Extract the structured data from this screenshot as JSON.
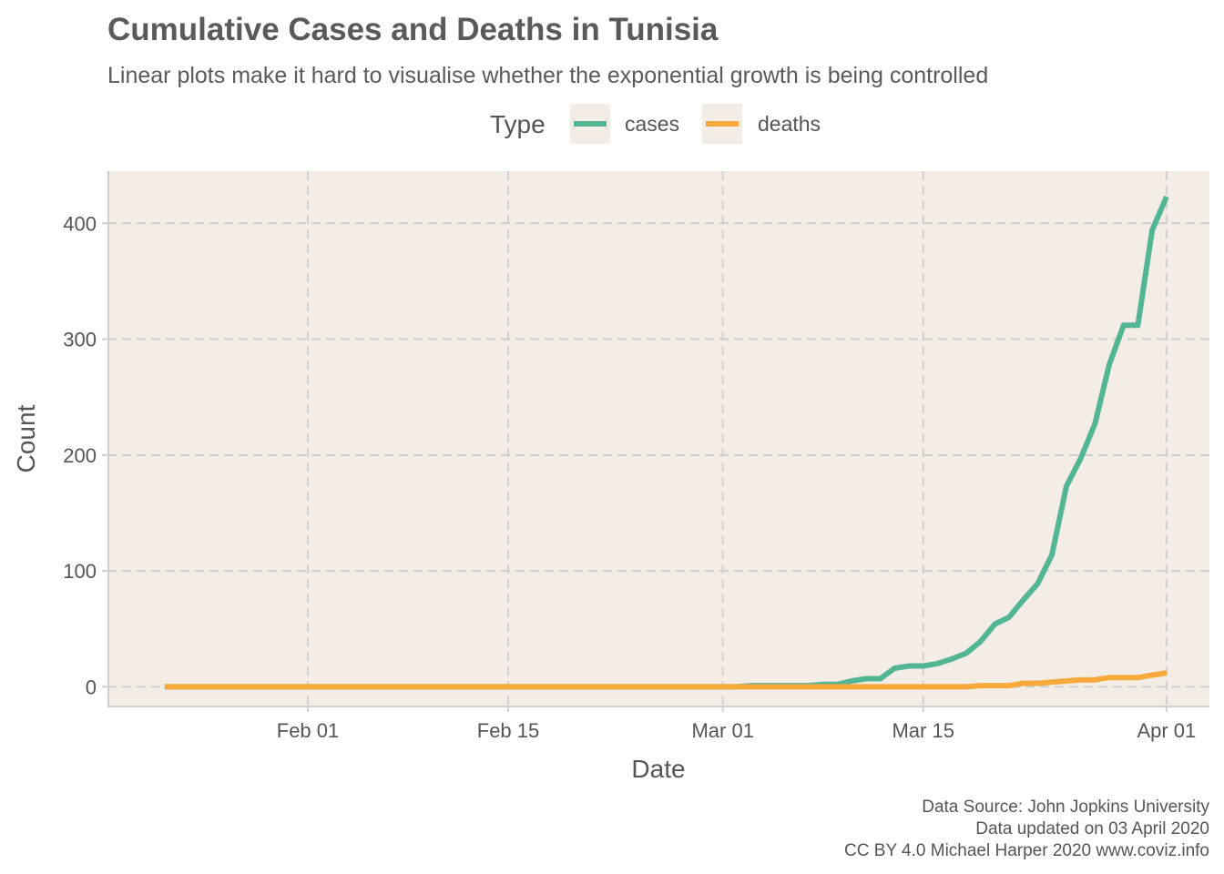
{
  "chart_data": {
    "type": "line",
    "title": "Cumulative Cases and Deaths in Tunisia",
    "subtitle": "Linear plots make it hard to visualise whether the exponential growth is being controlled",
    "legend": {
      "title": "Type",
      "placement": "top"
    },
    "xlabel": "Date",
    "ylabel": "Count",
    "xlim": [
      "2020-01-18",
      "2020-04-04"
    ],
    "ylim": [
      -17,
      445
    ],
    "x_ticks": [
      {
        "date": "2020-02-01",
        "label": "Feb 01"
      },
      {
        "date": "2020-02-15",
        "label": "Feb 15"
      },
      {
        "date": "2020-03-01",
        "label": "Mar 01"
      },
      {
        "date": "2020-03-15",
        "label": "Mar 15"
      },
      {
        "date": "2020-04-01",
        "label": "Apr 01"
      }
    ],
    "y_ticks": [
      0,
      100,
      200,
      300,
      400
    ],
    "grid": true,
    "background": "#f3ede6",
    "series": [
      {
        "name": "cases",
        "color": "#52b594",
        "points": [
          [
            "2020-01-22",
            0
          ],
          [
            "2020-03-02",
            0
          ],
          [
            "2020-03-03",
            1
          ],
          [
            "2020-03-04",
            1
          ],
          [
            "2020-03-05",
            1
          ],
          [
            "2020-03-06",
            1
          ],
          [
            "2020-03-07",
            1
          ],
          [
            "2020-03-08",
            2
          ],
          [
            "2020-03-09",
            2
          ],
          [
            "2020-03-10",
            5
          ],
          [
            "2020-03-11",
            7
          ],
          [
            "2020-03-12",
            7
          ],
          [
            "2020-03-13",
            16
          ],
          [
            "2020-03-14",
            18
          ],
          [
            "2020-03-15",
            18
          ],
          [
            "2020-03-16",
            20
          ],
          [
            "2020-03-17",
            24
          ],
          [
            "2020-03-18",
            29
          ],
          [
            "2020-03-19",
            39
          ],
          [
            "2020-03-20",
            54
          ],
          [
            "2020-03-21",
            60
          ],
          [
            "2020-03-22",
            75
          ],
          [
            "2020-03-23",
            89
          ],
          [
            "2020-03-24",
            114
          ],
          [
            "2020-03-25",
            173
          ],
          [
            "2020-03-26",
            197
          ],
          [
            "2020-03-27",
            227
          ],
          [
            "2020-03-28",
            278
          ],
          [
            "2020-03-29",
            312
          ],
          [
            "2020-03-30",
            312
          ],
          [
            "2020-03-31",
            394
          ],
          [
            "2020-04-01",
            423
          ]
        ]
      },
      {
        "name": "deaths",
        "color": "#f7a93b",
        "points": [
          [
            "2020-01-22",
            0
          ],
          [
            "2020-03-18",
            0
          ],
          [
            "2020-03-19",
            1
          ],
          [
            "2020-03-20",
            1
          ],
          [
            "2020-03-21",
            1
          ],
          [
            "2020-03-22",
            3
          ],
          [
            "2020-03-23",
            3
          ],
          [
            "2020-03-24",
            4
          ],
          [
            "2020-03-25",
            5
          ],
          [
            "2020-03-26",
            6
          ],
          [
            "2020-03-27",
            6
          ],
          [
            "2020-03-28",
            8
          ],
          [
            "2020-03-29",
            8
          ],
          [
            "2020-03-30",
            8
          ],
          [
            "2020-03-31",
            10
          ],
          [
            "2020-04-01",
            12
          ]
        ]
      }
    ],
    "caption": [
      "Data Source: John Jopkins University",
      "Data updated on 03 April 2020",
      "CC BY 4.0 Michael Harper 2020 www.coviz.info"
    ]
  }
}
